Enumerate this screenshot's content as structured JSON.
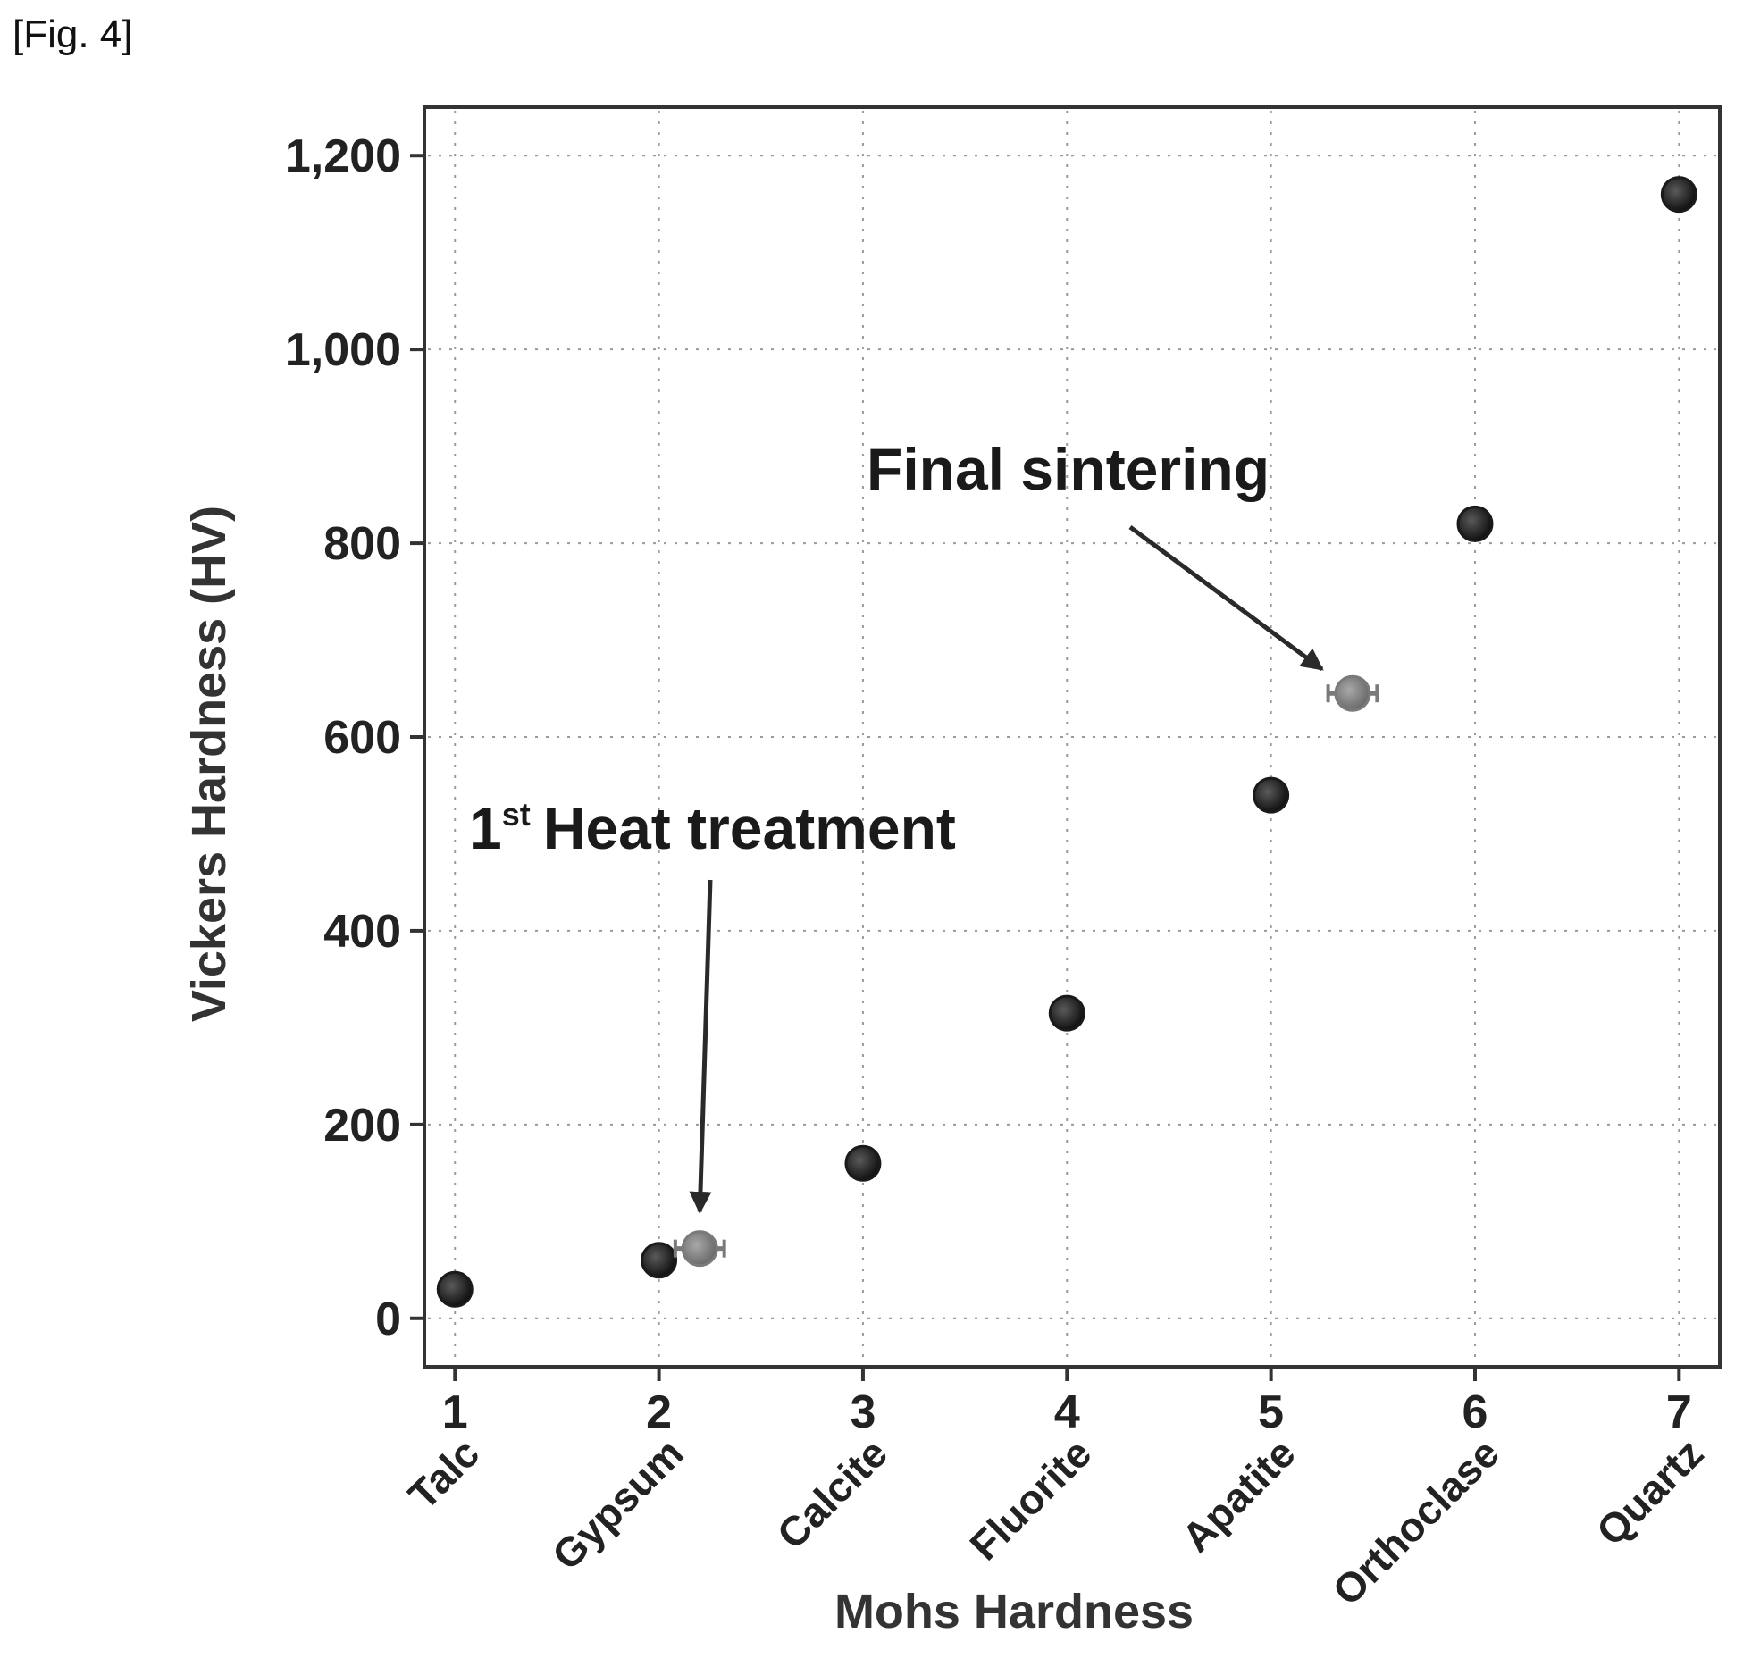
{
  "figure_label": "[Fig. 4]",
  "chart_data": {
    "type": "scatter",
    "title": "",
    "xlabel": "Mohs Hardness",
    "ylabel": "Vickers Hardness (HV)",
    "xlim": [
      0.85,
      7.2
    ],
    "ylim": [
      -50,
      1250
    ],
    "grid": true,
    "x_ticks": [
      {
        "value": 1,
        "label": "1",
        "mineral": "Talc"
      },
      {
        "value": 2,
        "label": "2",
        "mineral": "Gypsum"
      },
      {
        "value": 3,
        "label": "3",
        "mineral": "Calcite"
      },
      {
        "value": 4,
        "label": "4",
        "mineral": "Fluorite"
      },
      {
        "value": 5,
        "label": "5",
        "mineral": "Apatite"
      },
      {
        "value": 6,
        "label": "6",
        "mineral": "Orthoclase"
      },
      {
        "value": 7,
        "label": "7",
        "mineral": "Quartz"
      }
    ],
    "y_ticks": [
      {
        "value": 0,
        "label": "0"
      },
      {
        "value": 200,
        "label": "200"
      },
      {
        "value": 400,
        "label": "400"
      },
      {
        "value": 600,
        "label": "600"
      },
      {
        "value": 800,
        "label": "800"
      },
      {
        "value": 1000,
        "label": "1,000"
      },
      {
        "value": 1200,
        "label": "1,200"
      }
    ],
    "series": [
      {
        "color": "#1a1a1a",
        "marker": "circle",
        "points": [
          {
            "x": 1,
            "y": 30
          },
          {
            "x": 2,
            "y": 60
          },
          {
            "x": 3,
            "y": 160
          },
          {
            "x": 4,
            "y": 315
          },
          {
            "x": 5,
            "y": 540
          },
          {
            "x": 6,
            "y": 820
          },
          {
            "x": 7,
            "y": 1160
          }
        ]
      },
      {
        "color": "#7a7a7a",
        "marker": "circle-errorbar",
        "points": [
          {
            "x": 2.2,
            "y": 72,
            "xerr": 0.12
          },
          {
            "x": 5.4,
            "y": 645,
            "xerr": 0.12
          }
        ]
      }
    ],
    "annotations": [
      {
        "text_main": "Heat treatment",
        "text_prefix": "1",
        "text_superscript": "st",
        "arrow_to": {
          "x": 2.2,
          "y": 110
        }
      },
      {
        "text_main": "Final sintering",
        "arrow_to": {
          "x": 5.25,
          "y": 670
        }
      }
    ]
  }
}
